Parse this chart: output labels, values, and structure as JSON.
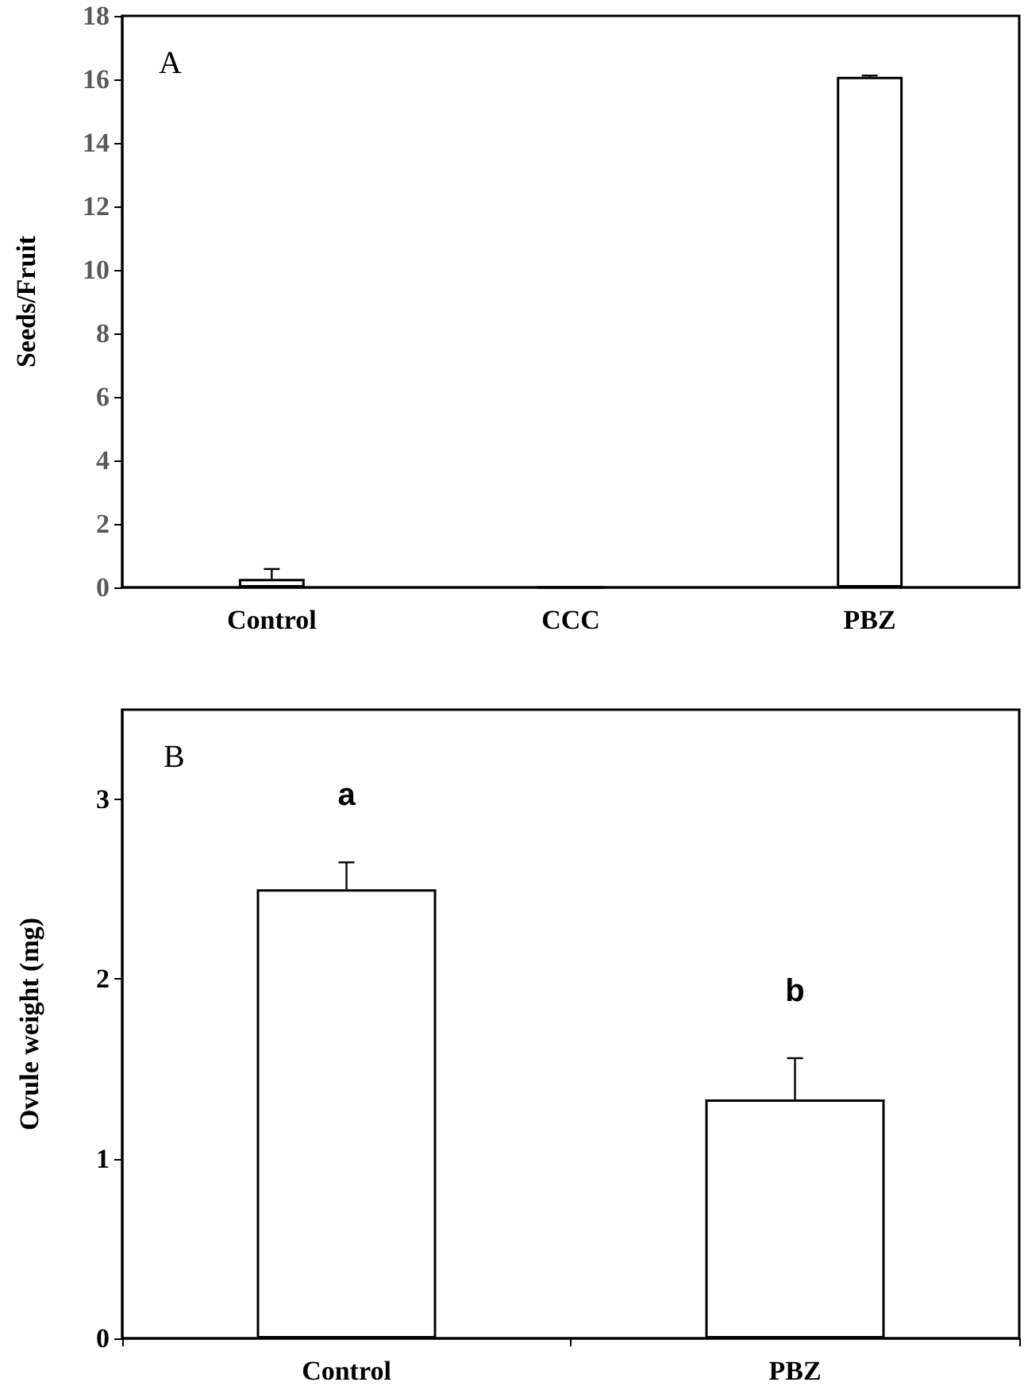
{
  "chart_data": [
    {
      "type": "bar",
      "ylabel": "Seeds/Fruit",
      "categories": [
        "Control",
        "CCC",
        "PBZ"
      ],
      "values": [
        0.27,
        0,
        16.08
      ],
      "errors": [
        [
          0.27,
          0.58
        ],
        null,
        [
          16.08,
          16.12
        ]
      ],
      "color": "#ffffff",
      "ylim": [
        0,
        18
      ],
      "yticks": [
        0,
        2,
        4,
        6,
        8,
        10,
        12,
        14,
        16,
        18
      ],
      "grid": false,
      "annotations": [
        "A"
      ]
    },
    {
      "type": "bar",
      "ylabel": "Ovule weight (mg)",
      "categories": [
        "Control",
        "PBZ"
      ],
      "values": [
        2.5,
        1.33
      ],
      "errors": [
        [
          2.5,
          2.65
        ],
        [
          1.33,
          1.56
        ]
      ],
      "color": "#ffffff",
      "ylim": [
        0,
        3.5
      ],
      "yticks": [
        0,
        1,
        2,
        3
      ],
      "grid": false,
      "annotations": [
        "B",
        "a",
        "b"
      ]
    }
  ]
}
